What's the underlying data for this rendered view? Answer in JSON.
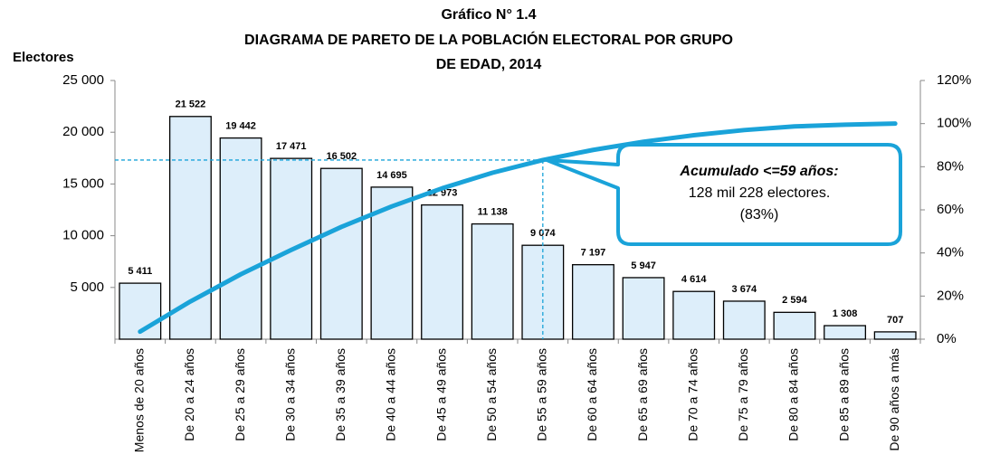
{
  "chart_data": {
    "type": "pareto",
    "title": [
      "Gráfico N° 1.4",
      "DIAGRAMA DE PARETO DE LA POBLACIÓN ELECTORAL POR GRUPO",
      "DE EDAD, 2014"
    ],
    "y_label": "Electores",
    "categories": [
      "Menos de 20 años",
      "De 20 a 24 años",
      "De 25 a 29 años",
      "De 30 a 34 años",
      "De 35 a 39 años",
      "De 40 a 44 años",
      "De 45 a 49 años",
      "De 50 a 54 años",
      "De 55 a 59 años",
      "De 60 a 64 años",
      "De 65 a 69 años",
      "De 70 a 74 años",
      "De 75 a 79 años",
      "De 80 a 84 años",
      "De 85 a 89 años",
      "De 90 años a más"
    ],
    "series": [
      {
        "name": "Electores",
        "type": "bar",
        "color": "#ddeefa",
        "values": [
          5411,
          21522,
          19442,
          17471,
          16502,
          14695,
          12973,
          11138,
          9074,
          7197,
          5947,
          4614,
          3674,
          2594,
          1308,
          707
        ],
        "value_labels": [
          "5 411",
          "21 522",
          "19 442",
          "17 471",
          "16 502",
          "14 695",
          "12 973",
          "11 138",
          "9 074",
          "7 197",
          "5 947",
          "4 614",
          "3 674",
          "2 594",
          "1 308",
          "707"
        ]
      },
      {
        "name": "Acumulado",
        "type": "line",
        "axis": "y2",
        "color": "#1aa3d9",
        "values": [
          3.5,
          17.5,
          30.1,
          41.4,
          52.1,
          61.6,
          70.0,
          77.2,
          83.1,
          87.8,
          91.6,
          94.6,
          97.0,
          98.7,
          99.5,
          100
        ]
      }
    ],
    "ylim": [
      0,
      25000
    ],
    "yticks": [
      {
        "value": 5000,
        "label": "5 000"
      },
      {
        "value": 10000,
        "label": "10 000"
      },
      {
        "value": 15000,
        "label": "15 000"
      },
      {
        "value": 20000,
        "label": "20 000"
      },
      {
        "value": 25000,
        "label": "25 000"
      }
    ],
    "y2lim": [
      0,
      120
    ],
    "y2ticks": [
      {
        "value": 0,
        "label": "0%"
      },
      {
        "value": 20,
        "label": "20%"
      },
      {
        "value": 40,
        "label": "40%"
      },
      {
        "value": 60,
        "label": "60%"
      },
      {
        "value": 80,
        "label": "80%"
      },
      {
        "value": 100,
        "label": "100%"
      },
      {
        "value": 120,
        "label": "120%"
      }
    ],
    "annotation": {
      "point": 8,
      "lines": [
        "Acumulado <=59 años:",
        "128 mil 228 electores.",
        "(83%)"
      ]
    }
  }
}
